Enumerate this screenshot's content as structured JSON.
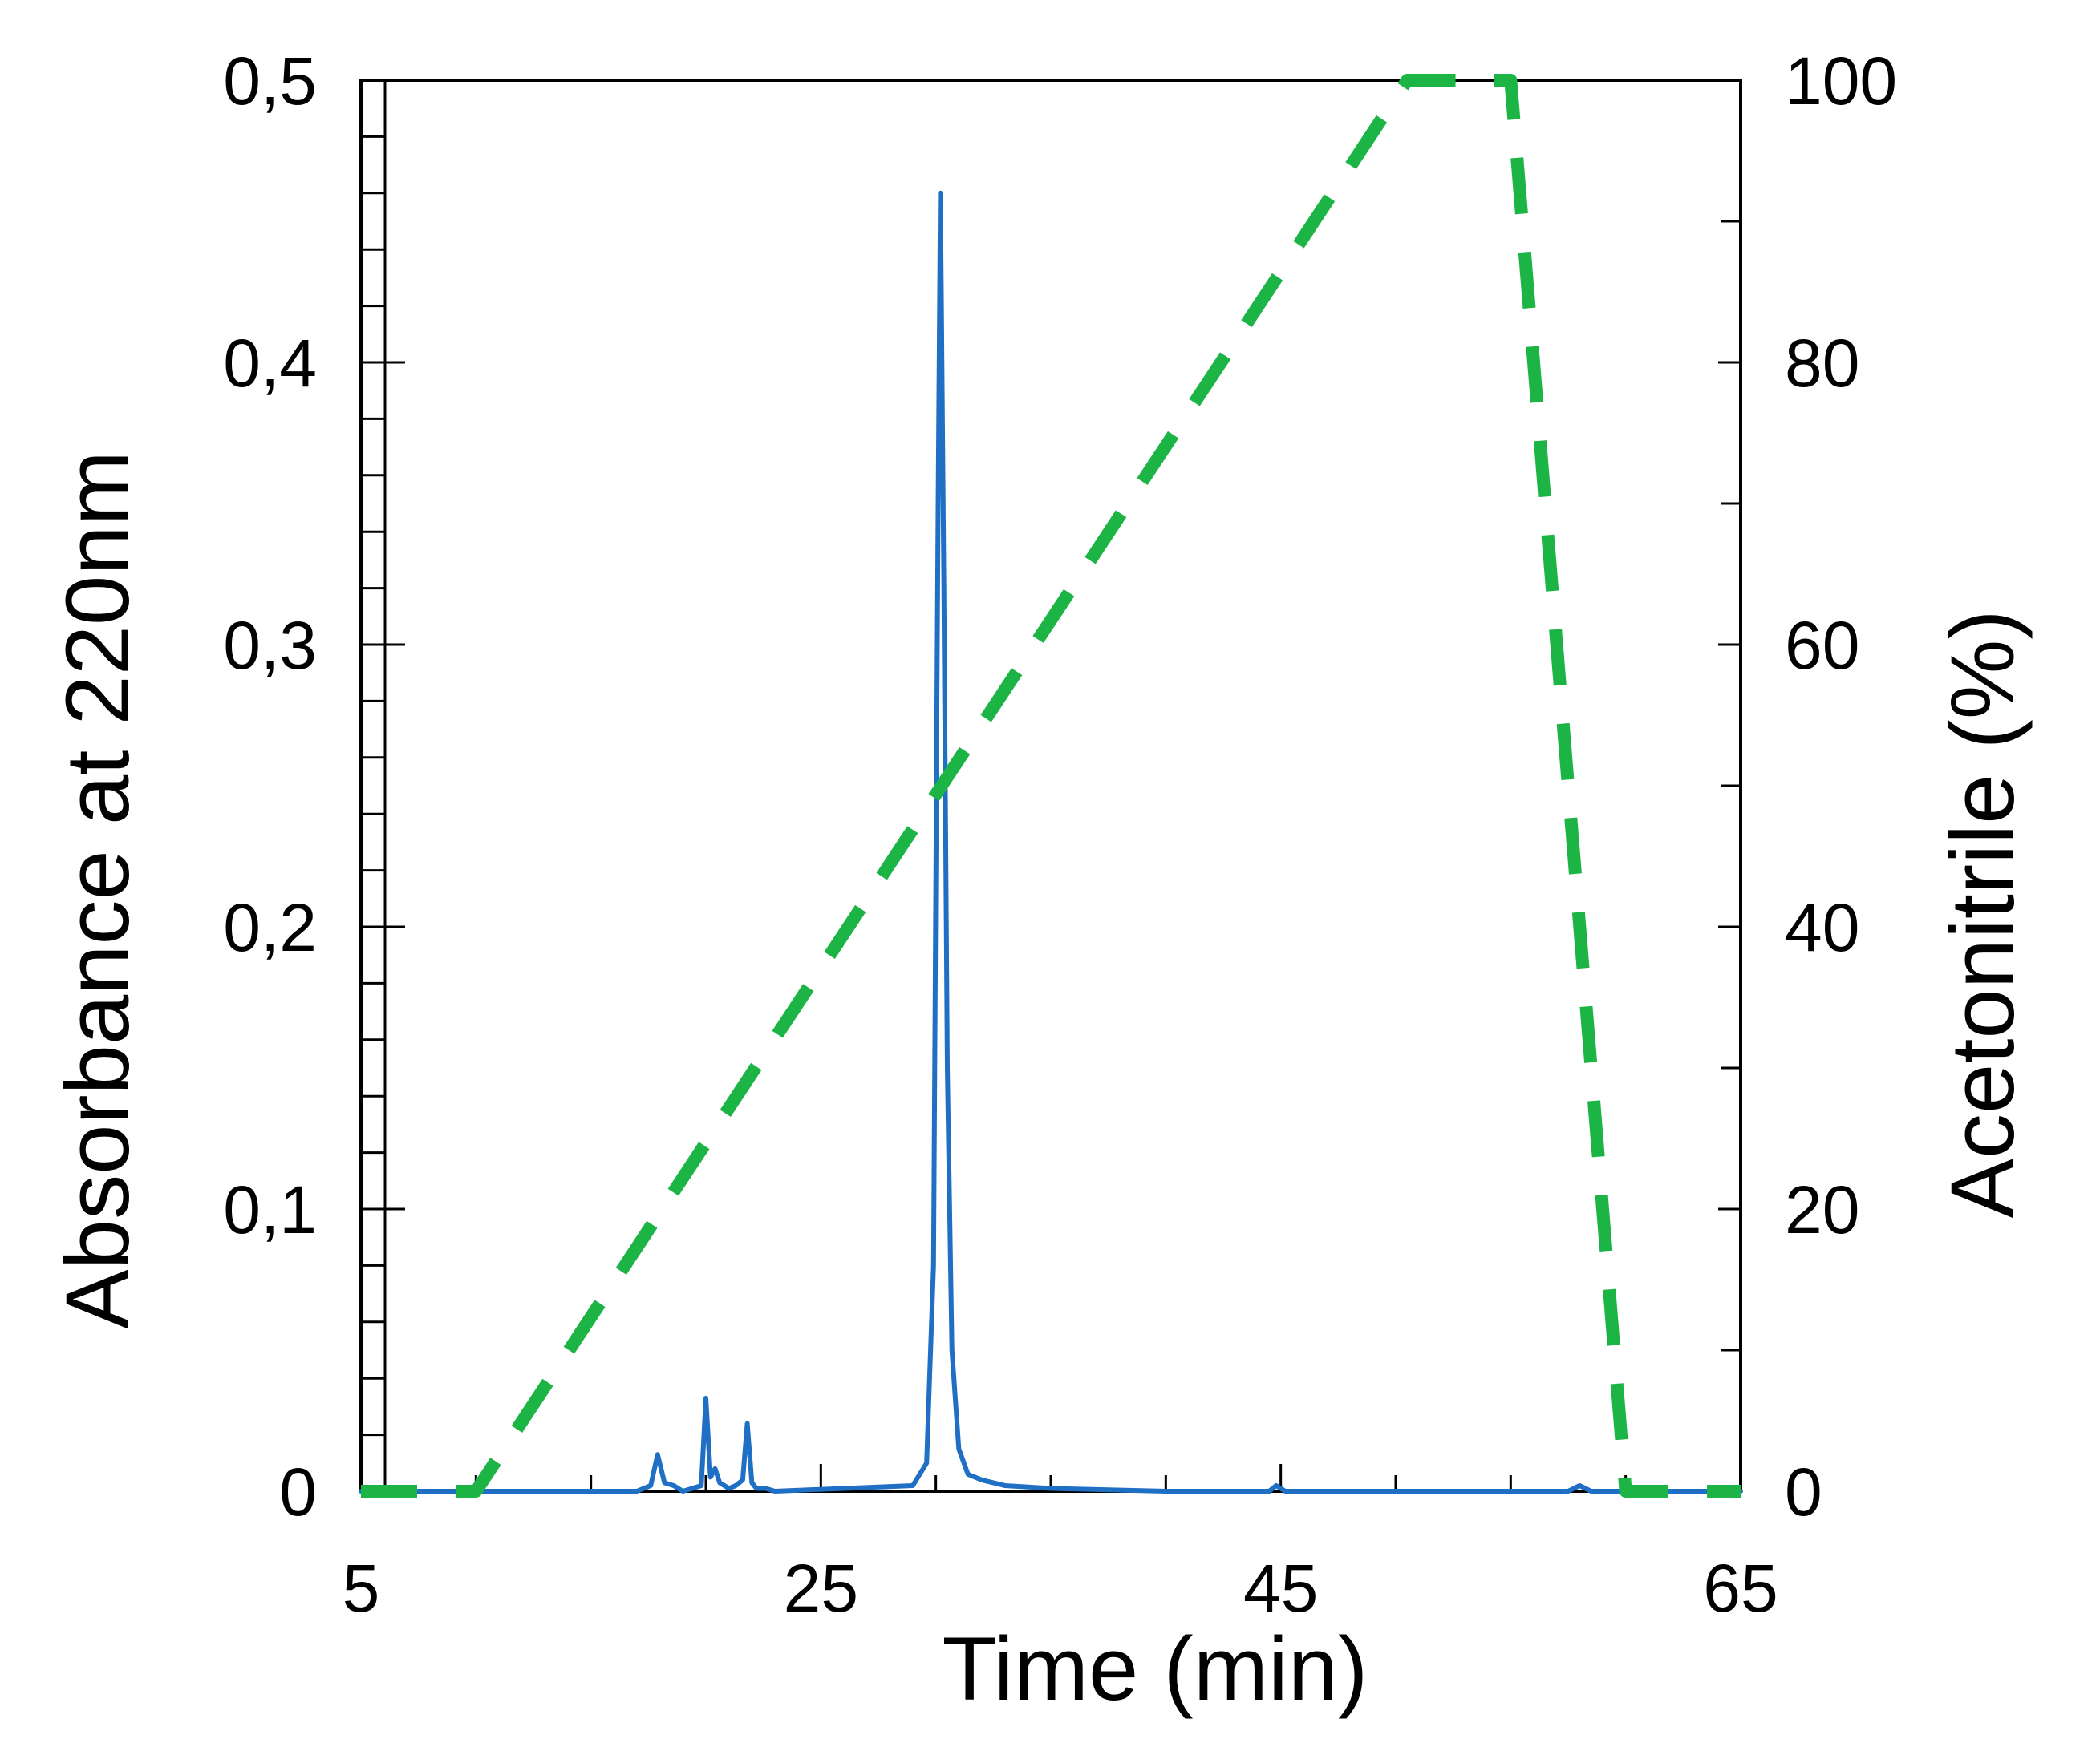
{
  "chart_data": {
    "type": "line",
    "title": "",
    "xlabel": "Time (min)",
    "ylabel_left": "Absorbance at 220nm",
    "ylabel_right": "Acetonitrile (%)",
    "xlim": [
      5,
      65
    ],
    "ylim_left": [
      0,
      0.5
    ],
    "ylim_right": [
      0,
      100
    ],
    "x_ticks": [
      "5",
      "25",
      "45",
      "65"
    ],
    "x_tick_values": [
      5,
      25,
      45,
      65
    ],
    "y_left_ticks": [
      "0",
      "0,1",
      "0,2",
      "0,3",
      "0,4",
      "0,5"
    ],
    "y_left_tick_values": [
      0,
      0.1,
      0.2,
      0.3,
      0.4,
      0.5
    ],
    "y_right_ticks": [
      "0",
      "20",
      "40",
      "60",
      "80",
      "100"
    ],
    "y_right_tick_values": [
      0,
      20,
      40,
      60,
      80,
      100
    ],
    "grid": false,
    "series": [
      {
        "axis": "left",
        "style": "solid",
        "color": "#1f6fc5",
        "x": [
          5,
          17.0,
          17.6,
          17.9,
          18.2,
          18.6,
          19.0,
          19.8,
          20.0,
          20.2,
          20.4,
          20.6,
          20.8,
          21.0,
          21.3,
          21.6,
          21.8,
          22.0,
          22.2,
          22.6,
          23.0,
          29.0,
          29.6,
          29.9,
          30.1,
          30.2,
          30.35,
          30.5,
          30.7,
          31.0,
          31.4,
          32.0,
          33.0,
          35.0,
          40.0,
          44.5,
          44.8,
          45.2,
          50.0,
          57.5,
          58.0,
          58.5,
          65
        ],
        "y": [
          0,
          0,
          0.002,
          0.013,
          0.003,
          0.002,
          0,
          0.002,
          0.033,
          0.005,
          0.008,
          0.003,
          0.002,
          0.001,
          0.002,
          0.004,
          0.024,
          0.003,
          0.001,
          0.001,
          0,
          0.002,
          0.01,
          0.08,
          0.35,
          0.46,
          0.32,
          0.15,
          0.05,
          0.015,
          0.006,
          0.004,
          0.002,
          0.001,
          0,
          0,
          0.002,
          0,
          0,
          0,
          0.002,
          0,
          0
        ]
      },
      {
        "axis": "right",
        "style": "dashed",
        "color": "#1db446",
        "x": [
          5,
          10,
          50.5,
          55,
          60,
          65
        ],
        "y": [
          0,
          0,
          100,
          100,
          0,
          0
        ]
      }
    ]
  }
}
